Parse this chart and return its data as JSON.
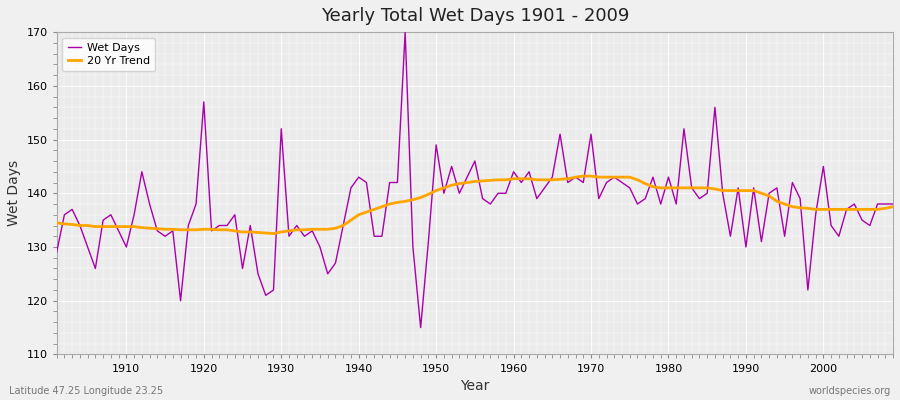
{
  "title": "Yearly Total Wet Days 1901 - 2009",
  "xlabel": "Year",
  "ylabel": "Wet Days",
  "subtitle": "Latitude 47.25 Longitude 23.25",
  "watermark": "worldspecies.org",
  "xlim": [
    1901,
    2009
  ],
  "ylim": [
    110,
    170
  ],
  "yticks": [
    110,
    120,
    130,
    140,
    150,
    160,
    170
  ],
  "xticks": [
    1910,
    1920,
    1930,
    1940,
    1950,
    1960,
    1970,
    1980,
    1990,
    2000
  ],
  "wet_days_color": "#AA00AA",
  "trend_color": "#FFA500",
  "figure_bg_color": "#F0F0F0",
  "plot_bg_color": "#EBEBEB",
  "years": [
    1901,
    1902,
    1903,
    1904,
    1905,
    1906,
    1907,
    1908,
    1909,
    1910,
    1911,
    1912,
    1913,
    1914,
    1915,
    1916,
    1917,
    1918,
    1919,
    1920,
    1921,
    1922,
    1923,
    1924,
    1925,
    1926,
    1927,
    1928,
    1929,
    1930,
    1931,
    1932,
    1933,
    1934,
    1935,
    1936,
    1937,
    1938,
    1939,
    1940,
    1941,
    1942,
    1943,
    1944,
    1945,
    1946,
    1947,
    1948,
    1949,
    1950,
    1951,
    1952,
    1953,
    1954,
    1955,
    1956,
    1957,
    1958,
    1959,
    1960,
    1961,
    1962,
    1963,
    1964,
    1965,
    1966,
    1967,
    1968,
    1969,
    1970,
    1971,
    1972,
    1973,
    1974,
    1975,
    1976,
    1977,
    1978,
    1979,
    1980,
    1981,
    1982,
    1983,
    1984,
    1985,
    1986,
    1987,
    1988,
    1989,
    1990,
    1991,
    1992,
    1993,
    1994,
    1995,
    1996,
    1997,
    1998,
    1999,
    2000,
    2001,
    2002,
    2003,
    2004,
    2005,
    2006,
    2007,
    2008,
    2009
  ],
  "wet_days": [
    129,
    136,
    137,
    134,
    130,
    126,
    135,
    136,
    133,
    130,
    136,
    144,
    138,
    133,
    132,
    133,
    120,
    134,
    138,
    157,
    133,
    134,
    134,
    136,
    126,
    134,
    125,
    121,
    122,
    152,
    132,
    134,
    132,
    133,
    130,
    125,
    127,
    134,
    141,
    143,
    142,
    132,
    132,
    142,
    142,
    170,
    130,
    115,
    131,
    149,
    140,
    145,
    140,
    143,
    146,
    139,
    138,
    140,
    140,
    144,
    142,
    144,
    139,
    141,
    143,
    151,
    142,
    143,
    142,
    151,
    139,
    142,
    143,
    142,
    141,
    138,
    139,
    143,
    138,
    143,
    138,
    152,
    141,
    139,
    140,
    156,
    140,
    132,
    141,
    130,
    141,
    131,
    140,
    141,
    132,
    142,
    139,
    122,
    136,
    145,
    134,
    132,
    137,
    138,
    135,
    134,
    138,
    138,
    138
  ],
  "trend": [
    134.5,
    134.3,
    134.2,
    134.0,
    134.0,
    133.8,
    133.8,
    133.8,
    133.8,
    133.8,
    133.8,
    133.6,
    133.5,
    133.4,
    133.3,
    133.3,
    133.2,
    133.2,
    133.2,
    133.3,
    133.3,
    133.2,
    133.2,
    133.0,
    132.8,
    132.8,
    132.7,
    132.6,
    132.5,
    132.8,
    133.0,
    133.2,
    133.2,
    133.3,
    133.3,
    133.3,
    133.5,
    134.0,
    135.0,
    136.0,
    136.5,
    137.0,
    137.5,
    138.0,
    138.3,
    138.5,
    138.8,
    139.2,
    139.8,
    140.5,
    141.0,
    141.5,
    141.8,
    142.0,
    142.2,
    142.3,
    142.4,
    142.5,
    142.5,
    142.7,
    142.7,
    142.7,
    142.5,
    142.5,
    142.5,
    142.6,
    142.7,
    143.0,
    143.2,
    143.2,
    143.0,
    143.0,
    143.0,
    143.0,
    143.0,
    142.5,
    141.8,
    141.2,
    141.0,
    141.0,
    141.0,
    141.0,
    141.0,
    141.0,
    141.0,
    140.8,
    140.5,
    140.5,
    140.5,
    140.5,
    140.5,
    140.0,
    139.5,
    138.5,
    138.0,
    137.5,
    137.3,
    137.2,
    137.0,
    137.0,
    137.0,
    137.0,
    137.0,
    137.0,
    137.0,
    137.0,
    137.0,
    137.2,
    137.5
  ]
}
